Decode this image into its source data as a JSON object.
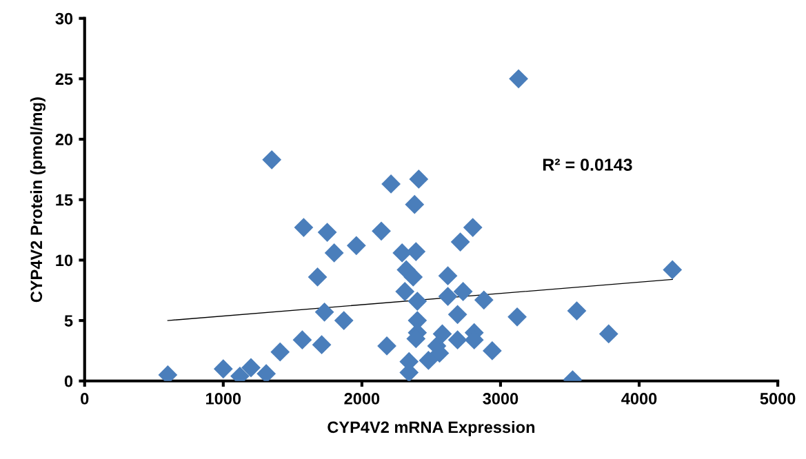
{
  "chart_data": {
    "type": "scatter",
    "xlabel": "CYP4V2 mRNA Expression",
    "ylabel": "CYP4V2 Protein (pmol/mg)",
    "xlim": [
      0,
      5000
    ],
    "xticks": [
      0,
      1000,
      2000,
      3000,
      4000,
      5000
    ],
    "ylim": [
      0,
      30
    ],
    "yticks": [
      0,
      5,
      10,
      15,
      20,
      25,
      30
    ],
    "grid": false,
    "legend": false,
    "annotations": [
      "R² = 0.0143"
    ],
    "series": [
      {
        "marker": "diamond",
        "color": "#4a7ebb",
        "x": [
          600,
          1000,
          1120,
          1200,
          1310,
          1410,
          1570,
          1710,
          1730,
          1870,
          1680,
          1580,
          1750,
          1800,
          1960,
          1350,
          2210,
          2410,
          2380,
          2140,
          2800,
          2710,
          2290,
          2390,
          2320,
          2370,
          2620,
          2310,
          2400,
          2620,
          2730,
          2880,
          2690,
          3120,
          2400,
          2400,
          2390,
          2180,
          2580,
          2690,
          2810,
          2810,
          2940,
          2540,
          2560,
          2480,
          2340,
          2340,
          4240,
          3550,
          3780,
          3520,
          3130
        ],
        "values": [
          0.5,
          1.0,
          0.4,
          1.1,
          0.6,
          2.4,
          3.4,
          3.0,
          5.7,
          5.0,
          8.6,
          12.7,
          12.3,
          10.6,
          11.2,
          18.3,
          16.3,
          16.7,
          14.6,
          12.4,
          12.7,
          11.5,
          10.6,
          10.7,
          9.2,
          8.6,
          8.7,
          7.4,
          6.6,
          7.0,
          7.4,
          6.7,
          5.5,
          5.3,
          5.0,
          4.0,
          3.5,
          2.9,
          3.9,
          3.4,
          4.0,
          3.4,
          2.5,
          2.9,
          2.3,
          1.7,
          1.6,
          0.7,
          9.2,
          5.8,
          3.9,
          0.1,
          25.0
        ]
      },
      {
        "type": "line",
        "marker": "none",
        "color": "#000000",
        "x": [
          600,
          4240
        ],
        "values": [
          5.0,
          8.4
        ]
      }
    ]
  }
}
